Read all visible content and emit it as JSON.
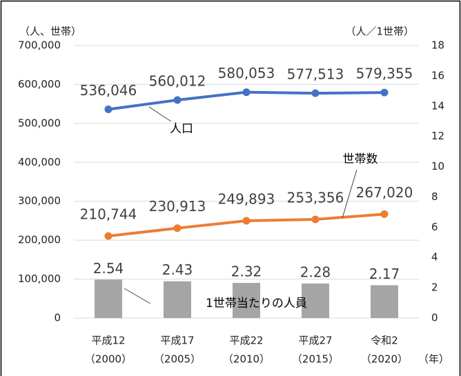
{
  "chart_data": {
    "type": "combo",
    "y_axis_label": "（人、世帯）",
    "y2_axis_label": "（人／1世帯）",
    "x_axis_label": "（年）",
    "categories": [
      "平成12",
      "平成17",
      "平成22",
      "平成27",
      "令和2"
    ],
    "category_years": [
      "（2000）",
      "（2005）",
      "（2010）",
      "（2015）",
      "（2020）"
    ],
    "series": [
      {
        "name": "人口",
        "type": "line",
        "color": "#4472c4",
        "values": [
          536046,
          560012,
          580053,
          577513,
          579355
        ],
        "value_labels": [
          "536,046",
          "560,012",
          "580,053",
          "577,513",
          "579,355"
        ]
      },
      {
        "name": "世帯数",
        "type": "line",
        "color": "#ed7d31",
        "values": [
          210744,
          230913,
          249893,
          253356,
          267020
        ],
        "value_labels": [
          "210,744",
          "230,913",
          "249,893",
          "253,356",
          "267,020"
        ]
      },
      {
        "name": "1世帯当たりの人員",
        "type": "bar",
        "axis": "y2",
        "color": "#a5a5a5",
        "values": [
          2.54,
          2.43,
          2.32,
          2.28,
          2.17
        ]
      }
    ],
    "ylim": [
      0,
      700000
    ],
    "yticks": [
      0,
      {
        "value": 100000,
        "label": "100,000"
      },
      {
        "value": 200000,
        "label": "200,000"
      },
      {
        "value": 300000,
        "label": "300,000"
      },
      {
        "value": 400000,
        "label": "400,000"
      },
      {
        "value": 500000,
        "label": "500,000"
      },
      {
        "value": 600000,
        "label": "600,000"
      },
      {
        "value": 700000,
        "label": "700,000"
      }
    ],
    "y2lim": [
      0,
      18
    ],
    "y2ticks": [
      0,
      2,
      4,
      6,
      8,
      10,
      12,
      14,
      16,
      18
    ],
    "grid": true
  }
}
